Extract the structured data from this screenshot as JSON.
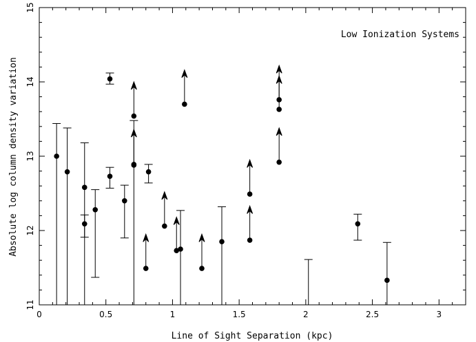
{
  "chart_data": {
    "type": "scatter",
    "title": "",
    "annotation": "Low Ionization Systems",
    "xlabel": "Line of Sight Separation (kpc)",
    "ylabel": "Absolute log column density variation",
    "xlim": [
      0,
      3.2
    ],
    "ylim": [
      11,
      15
    ],
    "x_ticks": [
      0,
      0.5,
      1,
      1.5,
      2,
      2.5,
      3
    ],
    "x_tick_labels": [
      "0",
      "0.5",
      "1",
      "1.5",
      "2",
      "2.5",
      "3"
    ],
    "y_ticks": [
      11,
      12,
      13,
      14,
      15
    ],
    "y_tick_labels": [
      "11",
      "12",
      "13",
      "14",
      "15"
    ],
    "grid": false,
    "points": [
      {
        "x": 0.13,
        "y": 13.0
      },
      {
        "x": 0.21,
        "y": 12.79
      },
      {
        "x": 0.34,
        "y": 12.58
      },
      {
        "x": 0.34,
        "y": 12.09
      },
      {
        "x": 0.42,
        "y": 12.28
      },
      {
        "x": 0.53,
        "y": 14.04
      },
      {
        "x": 0.53,
        "y": 12.73
      },
      {
        "x": 0.64,
        "y": 12.4
      },
      {
        "x": 0.71,
        "y": 13.54
      },
      {
        "x": 0.71,
        "y": 12.89
      },
      {
        "x": 0.71,
        "y": 12.88
      },
      {
        "x": 0.8,
        "y": 11.49
      },
      {
        "x": 0.82,
        "y": 12.79
      },
      {
        "x": 0.94,
        "y": 12.06
      },
      {
        "x": 1.03,
        "y": 11.73
      },
      {
        "x": 1.06,
        "y": 11.75
      },
      {
        "x": 1.09,
        "y": 13.7
      },
      {
        "x": 1.22,
        "y": 11.49
      },
      {
        "x": 1.37,
        "y": 11.85
      },
      {
        "x": 1.58,
        "y": 12.49
      },
      {
        "x": 1.58,
        "y": 11.87
      },
      {
        "x": 1.8,
        "y": 13.76
      },
      {
        "x": 1.8,
        "y": 13.63
      },
      {
        "x": 1.8,
        "y": 12.92
      },
      {
        "x": 2.39,
        "y": 12.09
      },
      {
        "x": 2.61,
        "y": 11.33
      }
    ],
    "error_bars": [
      {
        "x": 0.13,
        "low": 11.0,
        "high": 13.44
      },
      {
        "x": 0.21,
        "low": 11.0,
        "high": 13.38
      },
      {
        "x": 0.34,
        "low": 11.0,
        "high": 13.18
      },
      {
        "x": 0.34,
        "low": 11.91,
        "high": 12.21
      },
      {
        "x": 0.42,
        "low": 11.37,
        "high": 12.55
      },
      {
        "x": 0.53,
        "low": 13.97,
        "high": 14.12
      },
      {
        "x": 0.53,
        "low": 12.57,
        "high": 12.85
      },
      {
        "x": 0.64,
        "low": 11.9,
        "high": 12.61
      },
      {
        "x": 0.71,
        "low": 11.0,
        "high": 13.48
      },
      {
        "x": 0.82,
        "low": 12.64,
        "high": 12.89
      },
      {
        "x": 1.06,
        "low": 11.0,
        "high": 12.27
      },
      {
        "x": 1.37,
        "low": 11.0,
        "high": 12.32
      },
      {
        "x": 2.02,
        "low": 11.0,
        "high": 11.61
      },
      {
        "x": 2.39,
        "low": 11.87,
        "high": 12.22
      },
      {
        "x": 2.61,
        "low": 11.0,
        "high": 11.84
      }
    ],
    "lower_limits": [
      {
        "x": 0.71,
        "from": 13.54,
        "to": 14.0
      },
      {
        "x": 0.71,
        "from": 12.89,
        "to": 13.36
      },
      {
        "x": 0.8,
        "from": 11.49,
        "to": 11.95
      },
      {
        "x": 0.94,
        "from": 12.06,
        "to": 12.52
      },
      {
        "x": 1.03,
        "from": 11.73,
        "to": 12.18
      },
      {
        "x": 1.09,
        "from": 13.7,
        "to": 14.16
      },
      {
        "x": 1.22,
        "from": 11.49,
        "to": 11.95
      },
      {
        "x": 1.58,
        "from": 12.49,
        "to": 12.95
      },
      {
        "x": 1.58,
        "from": 11.87,
        "to": 12.33
      },
      {
        "x": 1.8,
        "from": 13.76,
        "to": 14.22
      },
      {
        "x": 1.8,
        "from": 13.63,
        "to": 14.08
      },
      {
        "x": 1.8,
        "from": 12.92,
        "to": 13.38
      }
    ]
  }
}
